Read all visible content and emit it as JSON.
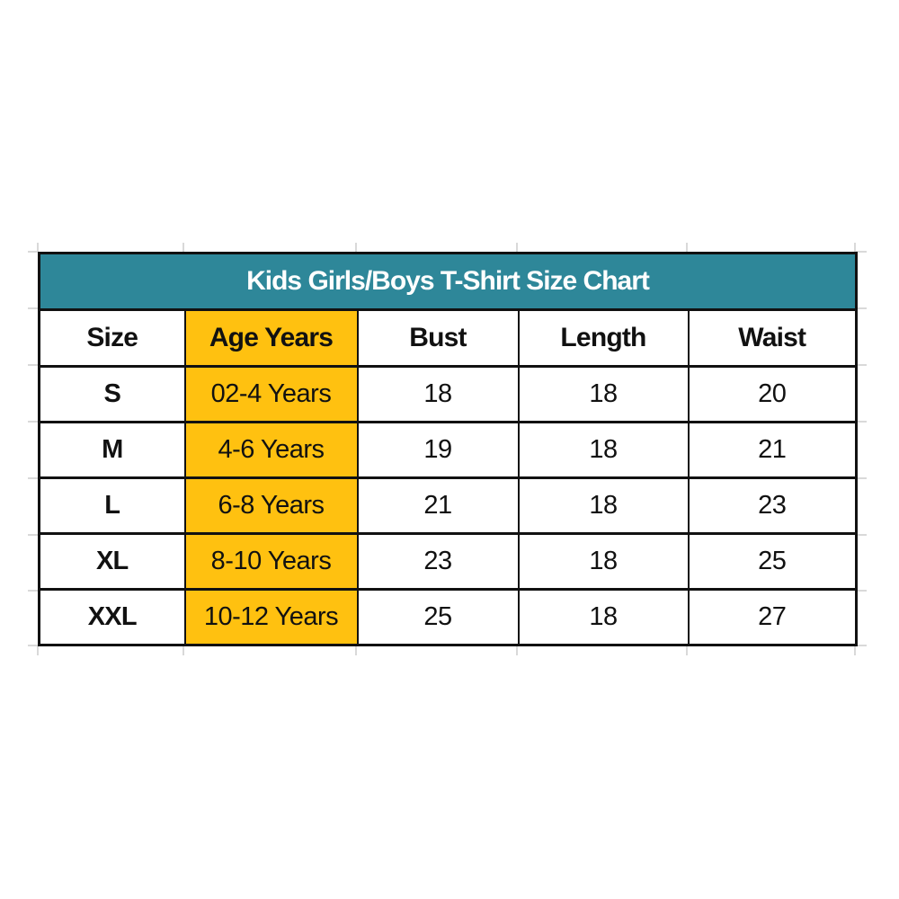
{
  "chart_data": {
    "type": "table",
    "title": "Kids Girls/Boys T-Shirt Size Chart",
    "columns": [
      "Size",
      "Age Years",
      "Bust",
      "Length",
      "Waist"
    ],
    "rows": [
      [
        "S",
        "02-4 Years",
        "18",
        "18",
        "20"
      ],
      [
        "M",
        "4-6 Years",
        "19",
        "18",
        "21"
      ],
      [
        "L",
        "6-8 Years",
        "21",
        "18",
        "23"
      ],
      [
        "XL",
        "8-10 Years",
        "23",
        "18",
        "25"
      ],
      [
        "XXL",
        "10-12 Years",
        "25",
        "18",
        "27"
      ]
    ],
    "highlighted_column": "Age Years",
    "layout_hints": {
      "title_position": "top-merged-row",
      "gridlines_outside_table": true
    },
    "colors": {
      "title_bg": "#2e8799",
      "title_text": "#ffffff",
      "highlight_bg": "#ffc110",
      "border": "#111111",
      "cell_bg": "#ffffff",
      "cell_text": "#111111",
      "sheet_gridline": "#d9d9d9"
    }
  }
}
